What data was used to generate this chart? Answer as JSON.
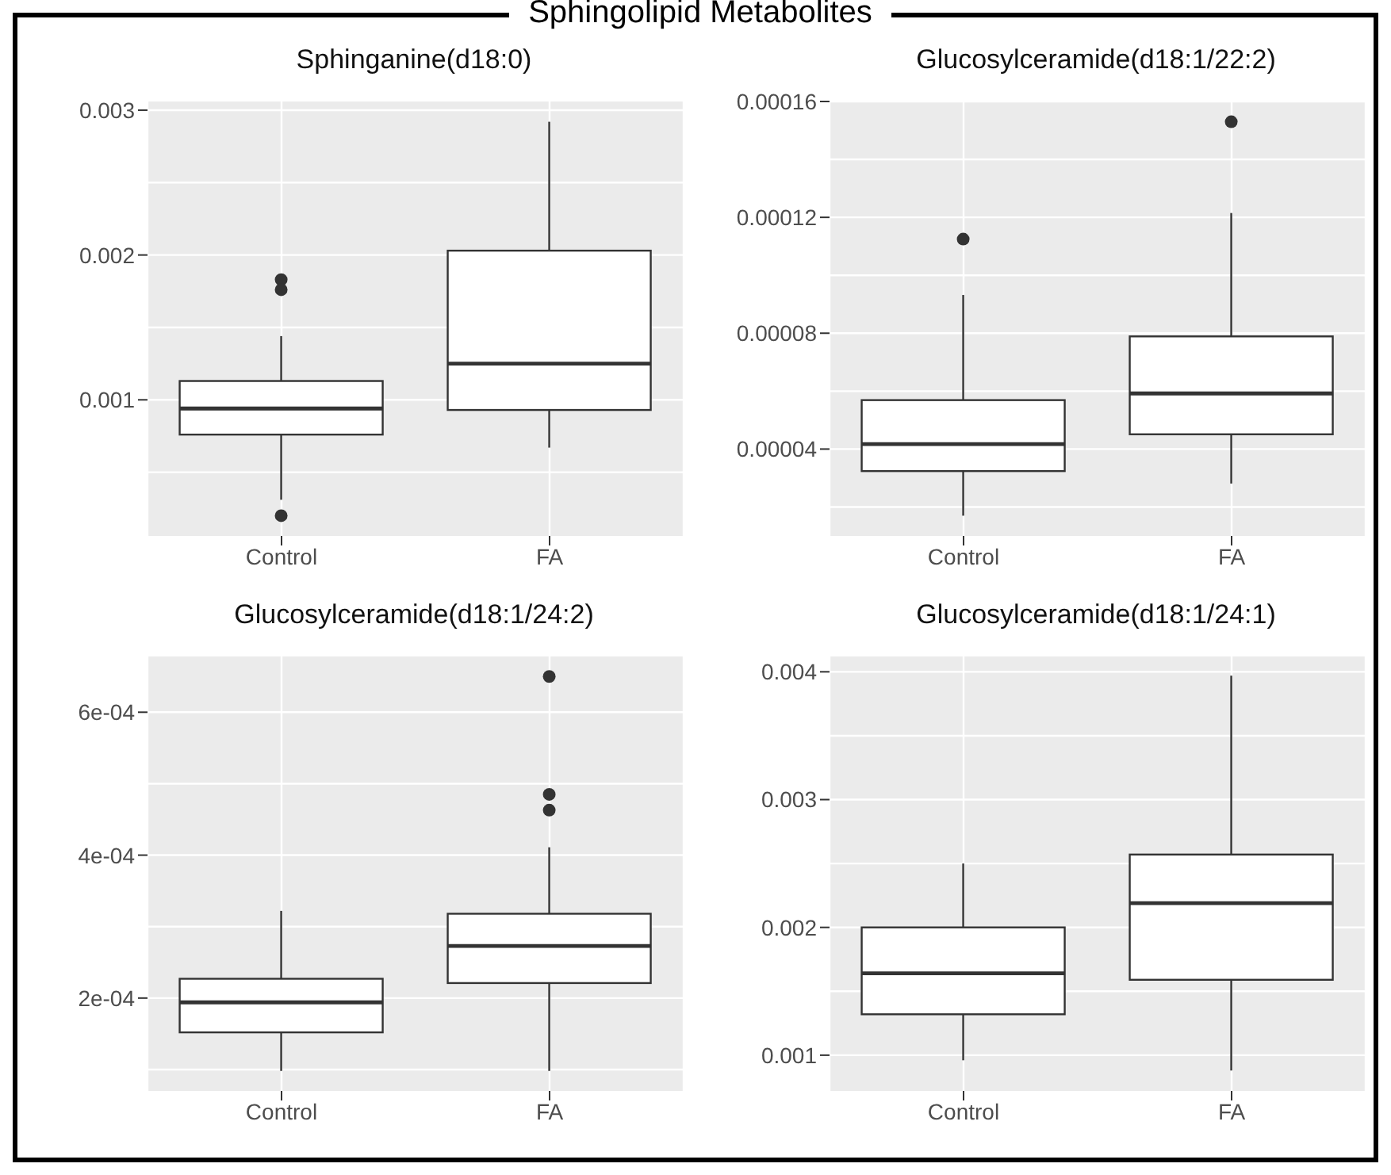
{
  "chart_data": [
    {
      "type": "other",
      "title": "Sphingolipid Metabolites"
    },
    {
      "type": "box",
      "title": "Sphinganine(d18:0)",
      "categories": [
        "Control",
        "FA"
      ],
      "ylim": [
        6e-05,
        0.00306
      ],
      "yticks": [
        0.001,
        0.002,
        0.003
      ],
      "grid": true,
      "boxes": [
        {
          "low": 0.00031,
          "q1": 0.00076,
          "median": 0.00094,
          "q3": 0.00113,
          "high": 0.00144,
          "outliers": [
            0.00183,
            0.00176,
            0.0002
          ]
        },
        {
          "low": 0.00067,
          "q1": 0.00093,
          "median": 0.00125,
          "q3": 0.00203,
          "high": 0.00292
        }
      ]
    },
    {
      "type": "box",
      "title": "Glucosylceramide(d18:1/22:2)",
      "categories": [
        "Control",
        "FA"
      ],
      "ylim": [
        1e-05,
        0.00016
      ],
      "yticks": [
        {
          "value": 4e-05,
          "label": "0.00004"
        },
        {
          "value": 8e-05,
          "label": "0.00008"
        },
        {
          "value": 0.00012,
          "label": "0.00012"
        },
        {
          "value": 0.00016,
          "label": "0.00016"
        }
      ],
      "grid": true,
      "boxes": [
        {
          "low": 1.7e-05,
          "q1": 3.24e-05,
          "median": 4.17e-05,
          "q3": 5.69e-05,
          "high": 9.32e-05,
          "outliers": [
            0.0001125
          ]
        },
        {
          "low": 2.81e-05,
          "q1": 4.51e-05,
          "median": 5.92e-05,
          "q3": 7.89e-05,
          "high": 0.0001215,
          "outliers": [
            0.000153
          ]
        }
      ]
    },
    {
      "type": "box",
      "title": "Glucosylceramide(d18:1/24:2)",
      "categories": [
        "Control",
        "FA"
      ],
      "ylim": [
        7e-05,
        0.000678
      ],
      "yticks": [
        {
          "value": 0.0002,
          "label": "2e-04"
        },
        {
          "value": 0.0004,
          "label": "4e-04"
        },
        {
          "value": 0.0006,
          "label": "6e-04"
        }
      ],
      "grid": true,
      "boxes": [
        {
          "low": 9.8e-05,
          "q1": 0.000152,
          "median": 0.000194,
          "q3": 0.000227,
          "high": 0.000322
        },
        {
          "low": 9.8e-05,
          "q1": 0.000221,
          "median": 0.000273,
          "q3": 0.000318,
          "high": 0.000411,
          "outliers": [
            0.000485,
            0.000463,
            0.00065
          ]
        }
      ]
    },
    {
      "type": "box",
      "title": "Glucosylceramide(d18:1/24:1)",
      "categories": [
        "Control",
        "FA"
      ],
      "ylim": [
        0.00072,
        0.00412
      ],
      "yticks": [
        0.001,
        0.002,
        0.003,
        0.004
      ],
      "grid": true,
      "boxes": [
        {
          "low": 0.00096,
          "q1": 0.00132,
          "median": 0.00164,
          "q3": 0.002,
          "high": 0.0025
        },
        {
          "low": 0.00088,
          "q1": 0.00159,
          "median": 0.00219,
          "q3": 0.00257,
          "high": 0.00397
        }
      ]
    }
  ]
}
